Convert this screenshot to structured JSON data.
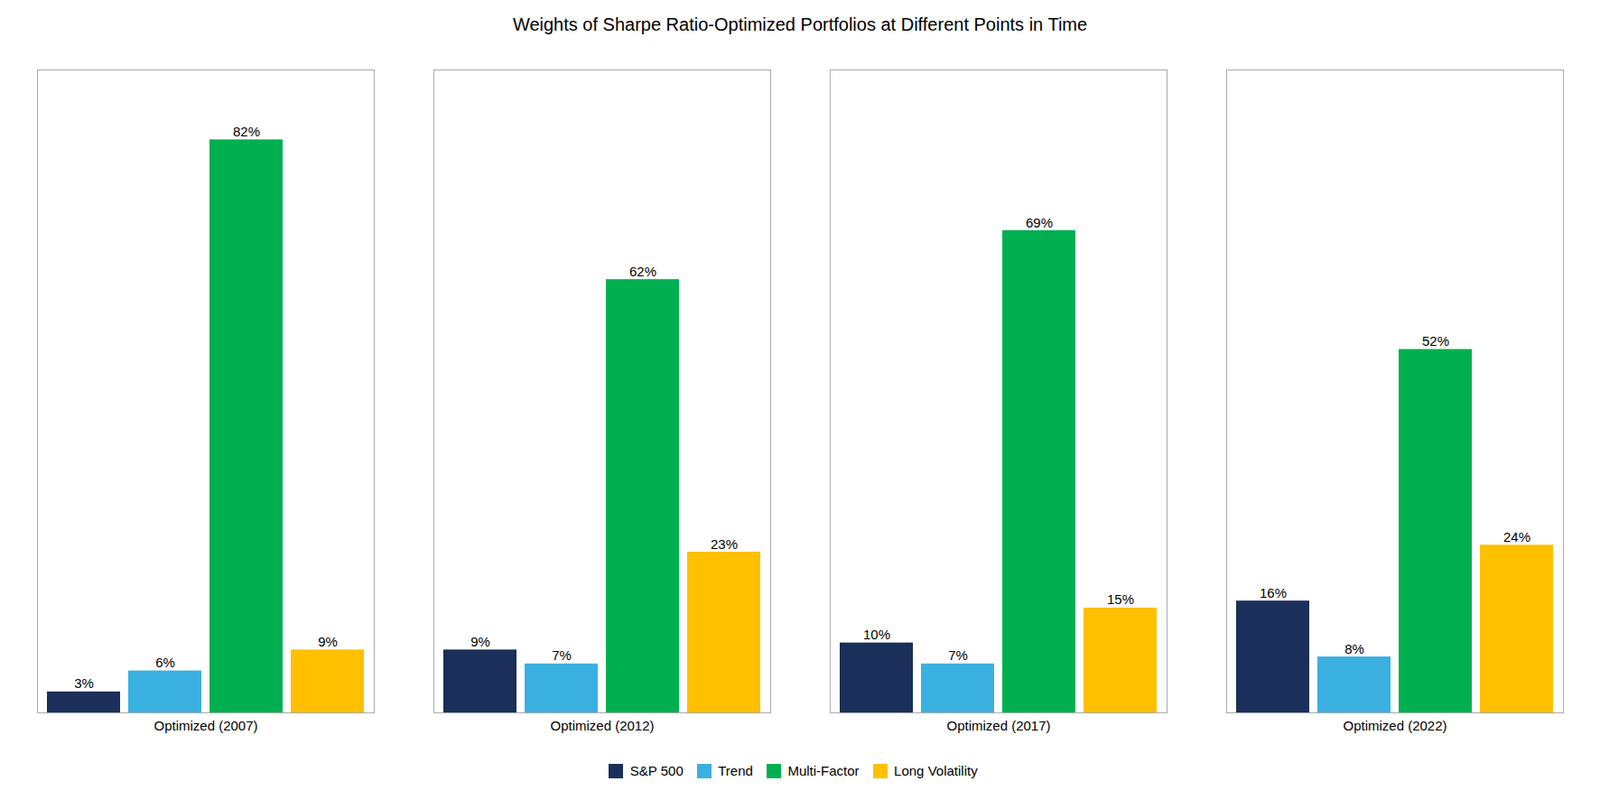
{
  "chart_data": {
    "type": "bar",
    "title": "Weights of Sharpe Ratio-Optimized Portfolios at Different Points in Time",
    "categories": [
      "Optimized (2007)",
      "Optimized (2012)",
      "Optimized (2017)",
      "Optimized (2022)"
    ],
    "series": [
      {
        "name": "S&P 500",
        "color": "#1a2f5a",
        "values": [
          3,
          9,
          10,
          16
        ],
        "value_labels": [
          "3%",
          "9%",
          "10%",
          "16%"
        ]
      },
      {
        "name": "Trend",
        "color": "#3ab0e0",
        "values": [
          6,
          7,
          7,
          8
        ],
        "value_labels": [
          "6%",
          "7%",
          "7%",
          "8%"
        ]
      },
      {
        "name": "Multi-Factor",
        "color": "#00b050",
        "values": [
          82,
          62,
          69,
          52
        ],
        "value_labels": [
          "82%",
          "62%",
          "69%",
          "52%"
        ]
      },
      {
        "name": "Long Volatility",
        "color": "#ffc000",
        "values": [
          9,
          23,
          15,
          24
        ],
        "value_labels": [
          "9%",
          "23%",
          "15%",
          "24%"
        ]
      }
    ],
    "ylim": [
      0,
      92
    ],
    "data_labels": true,
    "legend": "bottom",
    "tick_labels": "x",
    "grid": false
  }
}
